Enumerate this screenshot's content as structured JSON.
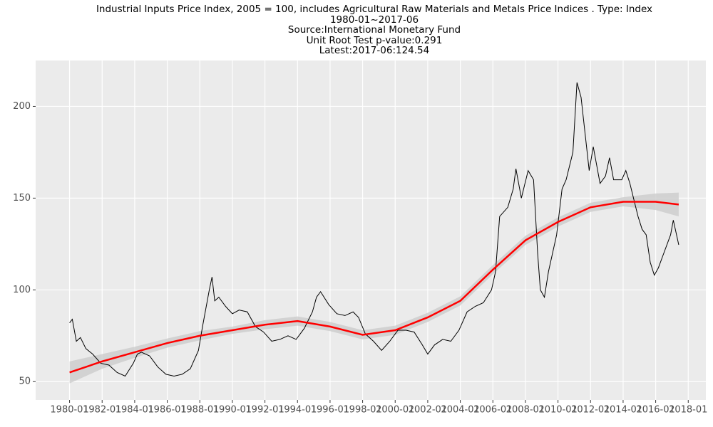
{
  "chart_data": {
    "type": "line",
    "title": "Industrial Inputs Price Index, 2005 = 100, includes Agricultural Raw Materials and Metals Price Indices . Type: Index",
    "date_range": "1980-01~2017-06",
    "source": "Source:International Monetary Fund",
    "unit_root_test": "Unit Root Test p-value:0.291",
    "latest": "Latest:2017-06:124.54",
    "xlim": [
      "1977-12",
      "2019-02"
    ],
    "xticks": [
      "1980-01",
      "1982-01",
      "1984-01",
      "1986-01",
      "1988-01",
      "1990-01",
      "1992-01",
      "1994-01",
      "1996-01",
      "1998-01",
      "2000-01",
      "2002-01",
      "2004-01",
      "2006-01",
      "2008-01",
      "2010-01",
      "2012-01",
      "2014-01",
      "2016-01",
      "2018-01"
    ],
    "ylim": [
      40,
      225
    ],
    "yticks": [
      50,
      100,
      150,
      200
    ],
    "grid": true,
    "series": [
      {
        "color": "#000000",
        "x": [
          "1980-01",
          "1980-03",
          "1980-06",
          "1980-09",
          "1981-01",
          "1981-06",
          "1981-12",
          "1982-06",
          "1982-12",
          "1983-06",
          "1983-12",
          "1984-03",
          "1984-06",
          "1984-12",
          "1985-06",
          "1985-12",
          "1986-06",
          "1986-12",
          "1987-06",
          "1987-12",
          "1988-03",
          "1988-08",
          "1988-10",
          "1988-12",
          "1989-03",
          "1989-08",
          "1990-01",
          "1990-06",
          "1990-12",
          "1991-06",
          "1991-12",
          "1992-06",
          "1992-12",
          "1993-06",
          "1993-12",
          "1994-06",
          "1994-12",
          "1995-03",
          "1995-06",
          "1995-12",
          "1996-06",
          "1996-12",
          "1997-06",
          "1997-10",
          "1998-03",
          "1998-09",
          "1999-03",
          "1999-09",
          "2000-03",
          "2000-09",
          "2001-03",
          "2001-09",
          "2002-01",
          "2002-06",
          "2002-12",
          "2003-06",
          "2003-12",
          "2004-06",
          "2004-12",
          "2005-06",
          "2005-12",
          "2006-03",
          "2006-06",
          "2006-12",
          "2007-04",
          "2007-06",
          "2007-10",
          "2008-03",
          "2008-07",
          "2008-10",
          "2008-12",
          "2009-03",
          "2009-06",
          "2009-12",
          "2010-04",
          "2010-07",
          "2010-12",
          "2011-03",
          "2011-06",
          "2011-09",
          "2011-12",
          "2012-03",
          "2012-08",
          "2012-12",
          "2013-03",
          "2013-06",
          "2013-12",
          "2014-03",
          "2014-06",
          "2014-12",
          "2015-03",
          "2015-06",
          "2015-09",
          "2015-12",
          "2016-03",
          "2016-06",
          "2016-12",
          "2017-02",
          "2017-06"
        ],
        "values": [
          82,
          84,
          72,
          74,
          68,
          65,
          60,
          59,
          55,
          53,
          60,
          65,
          66,
          64,
          58,
          54,
          53,
          54,
          57,
          67,
          80,
          100,
          107,
          94,
          96,
          91,
          87,
          89,
          88,
          80,
          77,
          72,
          73,
          75,
          73,
          79,
          88,
          96,
          99,
          92,
          87,
          86,
          88,
          85,
          76,
          72,
          67,
          72,
          78,
          78,
          77,
          70,
          65,
          70,
          73,
          72,
          78,
          88,
          91,
          93,
          100,
          110,
          140,
          145,
          155,
          166,
          150,
          165,
          160,
          120,
          100,
          96,
          110,
          130,
          155,
          160,
          175,
          213,
          205,
          185,
          165,
          178,
          158,
          162,
          172,
          160,
          160,
          165,
          158,
          140,
          133,
          130,
          115,
          108,
          112,
          118,
          130,
          138,
          124.54
        ]
      },
      {
        "color": "#ff0000",
        "x": [
          "1980-01",
          "1982-01",
          "1984-01",
          "1986-01",
          "1988-01",
          "1990-01",
          "1992-01",
          "1994-01",
          "1996-01",
          "1998-01",
          "2000-01",
          "2002-01",
          "2004-01",
          "2006-01",
          "2008-01",
          "2010-01",
          "2012-01",
          "2014-01",
          "2016-01",
          "2017-06"
        ],
        "values": [
          55,
          61,
          66,
          71,
          75,
          78,
          81,
          83,
          80,
          75.5,
          78,
          85,
          94,
          111,
          127,
          137,
          145,
          148,
          148,
          146.5
        ]
      }
    ],
    "band": {
      "color": "#cccccc",
      "x": [
        "1980-01",
        "1982-01",
        "1984-01",
        "1986-01",
        "1988-01",
        "1990-01",
        "1992-01",
        "1994-01",
        "1996-01",
        "1998-01",
        "2000-01",
        "2002-01",
        "2004-01",
        "2006-01",
        "2008-01",
        "2010-01",
        "2012-01",
        "2014-01",
        "2016-01",
        "2017-06"
      ],
      "lower": [
        49,
        57,
        63,
        68.5,
        72.5,
        76,
        78.5,
        80.5,
        77.5,
        73,
        75.5,
        82.5,
        91.5,
        108.5,
        124.5,
        134.5,
        142.5,
        145.5,
        143.5,
        140
      ],
      "upper": [
        61,
        65,
        69,
        73.5,
        77.5,
        80,
        83.5,
        85.5,
        82.5,
        78,
        80.5,
        87.5,
        96.5,
        113.5,
        129.5,
        139.5,
        147.5,
        150.5,
        152.5,
        153
      ]
    }
  }
}
